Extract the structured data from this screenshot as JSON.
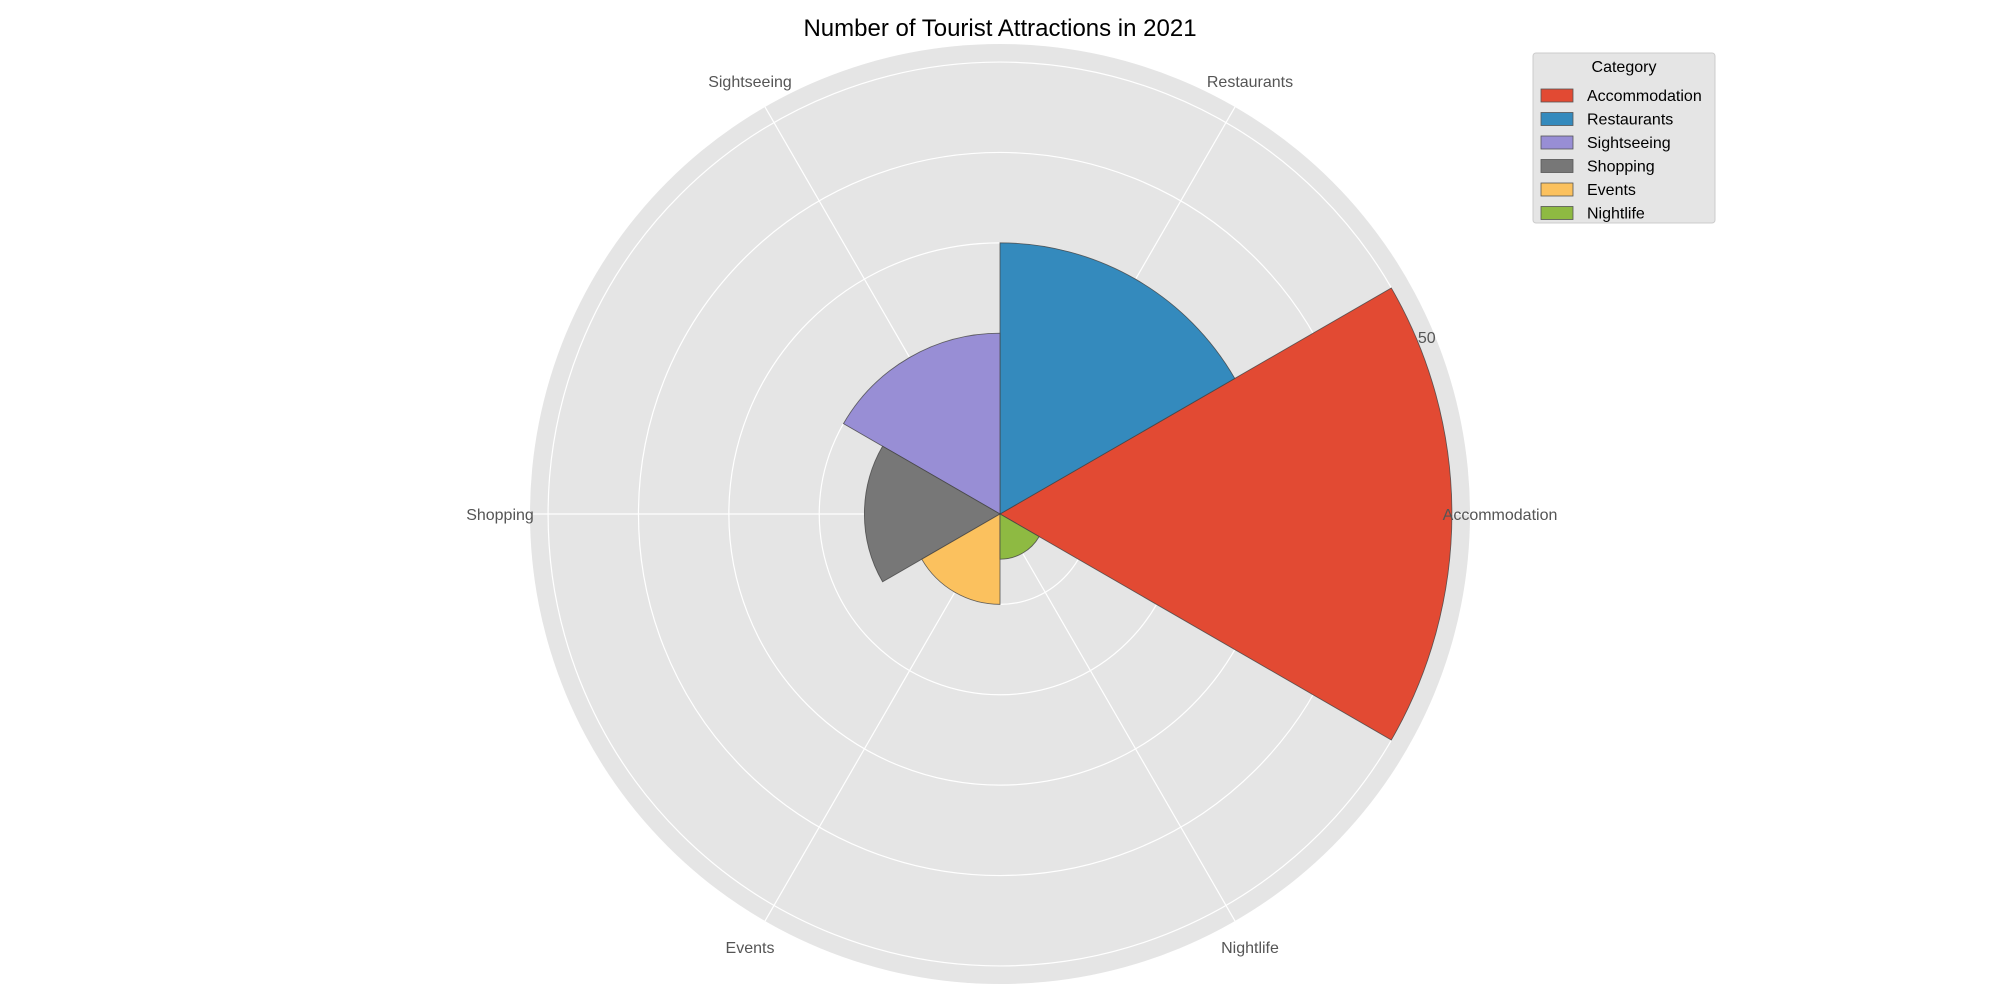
{
  "chart_data": {
    "type": "polar-bar",
    "title": "Number of Tourist Attractions in 2021",
    "categories": [
      "Accommodation",
      "Restaurants",
      "Sightseeing",
      "Shopping",
      "Events",
      "Nightlife"
    ],
    "values": [
      50,
      30,
      20,
      15,
      10,
      5
    ],
    "colors": [
      "#E24A33",
      "#348ABD",
      "#988ED5",
      "#777777",
      "#FBC15E",
      "#8EBA42"
    ],
    "r_max": 52,
    "r_tick_labels": [
      {
        "value": 50,
        "label": "50"
      }
    ],
    "grid": true,
    "legend": {
      "title": "Category",
      "placement": "top-right",
      "entries": [
        "Accommodation",
        "Restaurants",
        "Sightseeing",
        "Shopping",
        "Events",
        "Nightlife"
      ]
    }
  }
}
